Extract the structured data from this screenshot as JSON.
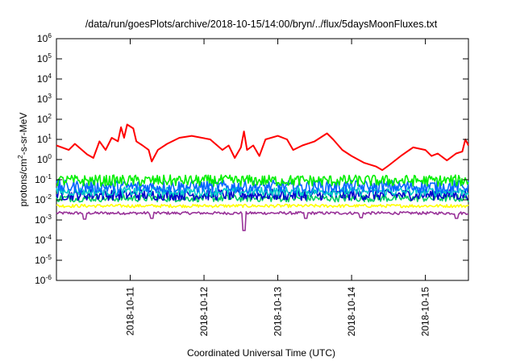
{
  "chart_data": {
    "type": "line",
    "title": "/data/run/goesPlots/archive/2018-10-15/14:00/bryn/../flux/5daysMoonFluxes.txt",
    "xlabel": "Coordinated Universal Time (UTC)",
    "ylabel": {
      "base": "protons/cm",
      "sup": "2",
      "rest": "-s-sr-MeV"
    },
    "yscale": "log",
    "ylim": [
      1e-06,
      1000000.0
    ],
    "y_ticks": [
      {
        "base": "10",
        "exp": "-6"
      },
      {
        "base": "10",
        "exp": "-5"
      },
      {
        "base": "10",
        "exp": "-4"
      },
      {
        "base": "10",
        "exp": "-3"
      },
      {
        "base": "10",
        "exp": "-2"
      },
      {
        "base": "10",
        "exp": "-1"
      },
      {
        "base": "10",
        "exp": "0"
      },
      {
        "base": "10",
        "exp": "1"
      },
      {
        "base": "10",
        "exp": "2"
      },
      {
        "base": "10",
        "exp": "3"
      },
      {
        "base": "10",
        "exp": "4"
      },
      {
        "base": "10",
        "exp": "5"
      },
      {
        "base": "10",
        "exp": "6"
      }
    ],
    "xlim": [
      "2018-10-10T00:00",
      "2018-10-15T14:00"
    ],
    "x_ticks": [
      "2018-10-11",
      "2018-10-12",
      "2018-10-13",
      "2018-10-14",
      "2018-10-15"
    ],
    "grid": false,
    "legend": "none",
    "series": [
      {
        "color": "#ff0000",
        "points": [
          [
            "2018-10-10T00:00",
            5
          ],
          [
            "2018-10-10T04:00",
            3
          ],
          [
            "2018-10-10T06:00",
            6
          ],
          [
            "2018-10-10T10:00",
            1.8
          ],
          [
            "2018-10-10T12:00",
            1.2
          ],
          [
            "2018-10-10T14:00",
            8
          ],
          [
            "2018-10-10T16:00",
            3
          ],
          [
            "2018-10-10T18:00",
            12
          ],
          [
            "2018-10-10T20:00",
            8
          ],
          [
            "2018-10-10T21:00",
            40
          ],
          [
            "2018-10-10T22:00",
            12
          ],
          [
            "2018-10-10T23:00",
            55
          ],
          [
            "2018-10-11T01:00",
            35
          ],
          [
            "2018-10-11T02:00",
            8
          ],
          [
            "2018-10-11T04:00",
            5
          ],
          [
            "2018-10-11T06:00",
            3
          ],
          [
            "2018-10-11T07:00",
            0.8
          ],
          [
            "2018-10-11T09:00",
            3
          ],
          [
            "2018-10-11T12:00",
            6
          ],
          [
            "2018-10-11T16:00",
            12
          ],
          [
            "2018-10-11T20:00",
            15
          ],
          [
            "2018-10-12T02:00",
            10
          ],
          [
            "2018-10-12T06:00",
            3
          ],
          [
            "2018-10-12T08:00",
            5
          ],
          [
            "2018-10-12T10:00",
            1.2
          ],
          [
            "2018-10-12T12:00",
            4
          ],
          [
            "2018-10-12T13:00",
            25
          ],
          [
            "2018-10-12T14:00",
            3
          ],
          [
            "2018-10-12T16:00",
            5
          ],
          [
            "2018-10-12T18:00",
            1.5
          ],
          [
            "2018-10-12T20:00",
            10
          ],
          [
            "2018-10-13T00:00",
            15
          ],
          [
            "2018-10-13T03:00",
            10
          ],
          [
            "2018-10-13T05:00",
            3
          ],
          [
            "2018-10-13T08:00",
            5
          ],
          [
            "2018-10-13T12:00",
            8
          ],
          [
            "2018-10-13T16:00",
            20
          ],
          [
            "2018-10-13T18:00",
            10
          ],
          [
            "2018-10-13T21:00",
            3
          ],
          [
            "2018-10-14T00:00",
            1.5
          ],
          [
            "2018-10-14T04:00",
            0.7
          ],
          [
            "2018-10-14T08:00",
            0.45
          ],
          [
            "2018-10-14T10:00",
            0.3
          ],
          [
            "2018-10-14T12:00",
            0.5
          ],
          [
            "2018-10-14T16:00",
            1.5
          ],
          [
            "2018-10-14T20:00",
            4
          ],
          [
            "2018-10-15T00:00",
            3
          ],
          [
            "2018-10-15T02:00",
            1.5
          ],
          [
            "2018-10-15T04:00",
            2
          ],
          [
            "2018-10-15T07:00",
            0.9
          ],
          [
            "2018-10-15T10:00",
            2
          ],
          [
            "2018-10-15T12:00",
            2.5
          ],
          [
            "2018-10-15T13:00",
            10
          ],
          [
            "2018-10-15T14:00",
            5
          ]
        ]
      },
      {
        "color": "#00ee00",
        "level": 0.09,
        "amp": 0.28,
        "dips": []
      },
      {
        "color": "#0066ff",
        "level": 0.045,
        "amp": 0.32,
        "dips": []
      },
      {
        "color": "#00cccc",
        "level": 0.026,
        "amp": 0.22,
        "dips": []
      },
      {
        "color": "#0000cc",
        "level": 0.018,
        "amp": 0.28,
        "dips": []
      },
      {
        "color": "#00cc66",
        "level": 0.012,
        "amp": 0.18,
        "dips": []
      },
      {
        "color": "#ffff00",
        "level": 0.005,
        "amp": 0.08,
        "dips": []
      },
      {
        "color": "#993399",
        "level": 0.0022,
        "amp": 0.07,
        "dips": [
          [
            "2018-10-10T09:00",
            0.0011
          ],
          [
            "2018-10-11T07:00",
            0.0012
          ],
          [
            "2018-10-12T13:00",
            0.0003
          ],
          [
            "2018-10-13T09:00",
            0.0012
          ],
          [
            "2018-10-14T03:00",
            0.0013
          ],
          [
            "2018-10-15T10:00",
            0.0012
          ]
        ]
      }
    ]
  }
}
